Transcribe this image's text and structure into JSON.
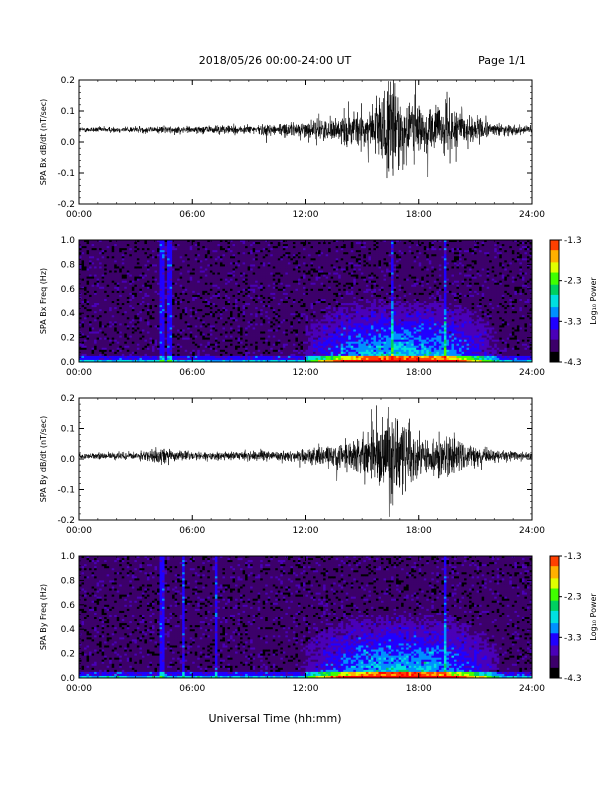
{
  "header": {
    "title": "2018/05/26  00:00-24:00 UT",
    "page": "Page 1/1"
  },
  "footer": {
    "xlabel": "Universal Time (hh:mm)"
  },
  "colorbar": {
    "label": "Log₁₀ Power",
    "ticks": [
      "-1.3",
      "-2.3",
      "-3.3",
      "-4.3"
    ],
    "range": [
      -4.3,
      -1.3
    ],
    "colors": [
      "#000000",
      "#3c006a",
      "#4a00b8",
      "#2000ff",
      "#0090ff",
      "#00e0e0",
      "#00d060",
      "#40ff00",
      "#e0ff00",
      "#ffb000",
      "#ff4000",
      "#ff0000"
    ]
  },
  "chart_data": [
    {
      "type": "line",
      "panel": "bx-timeseries",
      "ylabel": "SPA Bx dB/dt (nT/sec)",
      "x_ticks": [
        "00:00",
        "06:00",
        "12:00",
        "18:00",
        "24:00"
      ],
      "y_ticks": [
        "0.2",
        "0.1",
        "0.0",
        "-0.1",
        "-0.2"
      ],
      "xlim": [
        0,
        24
      ],
      "ylim": [
        -0.2,
        0.2
      ],
      "baseline": 0.04,
      "activity_envelope": [
        {
          "hour": 0,
          "amplitude": 0.008
        },
        {
          "hour": 3,
          "amplitude": 0.01
        },
        {
          "hour": 6,
          "amplitude": 0.012
        },
        {
          "hour": 9,
          "amplitude": 0.014
        },
        {
          "hour": 11,
          "amplitude": 0.02
        },
        {
          "hour": 13,
          "amplitude": 0.03
        },
        {
          "hour": 14.5,
          "amplitude": 0.05
        },
        {
          "hour": 15.5,
          "amplitude": 0.08
        },
        {
          "hour": 16.5,
          "amplitude": 0.15
        },
        {
          "hour": 17.5,
          "amplitude": 0.12
        },
        {
          "hour": 18.5,
          "amplitude": 0.06
        },
        {
          "hour": 19.5,
          "amplitude": 0.09
        },
        {
          "hour": 20.5,
          "amplitude": 0.05
        },
        {
          "hour": 22,
          "amplitude": 0.02
        },
        {
          "hour": 24,
          "amplitude": 0.012
        }
      ]
    },
    {
      "type": "heatmap",
      "panel": "bx-spectrogram",
      "ylabel": "SPA Bx Freq (Hz)",
      "x_ticks": [
        "00:00",
        "06:00",
        "12:00",
        "18:00",
        "24:00"
      ],
      "y_ticks": [
        "1.0",
        "0.8",
        "0.6",
        "0.4",
        "0.2",
        "0.0"
      ],
      "xlim": [
        0,
        24
      ],
      "ylim": [
        0,
        1.0
      ],
      "zlim": [
        -4.3,
        -1.3
      ],
      "background_log_power": -3.9,
      "vertical_streaks_hours": [
        4.4,
        4.8,
        16.6,
        19.4
      ],
      "enhanced_region": {
        "hours": [
          12,
          23
        ],
        "peak_hour": 17,
        "max_freq_hz": 0.45
      }
    },
    {
      "type": "line",
      "panel": "by-timeseries",
      "ylabel": "SPA By dB/dt (nT/sec)",
      "x_ticks": [
        "00:00",
        "06:00",
        "12:00",
        "18:00",
        "24:00"
      ],
      "y_ticks": [
        "0.2",
        "0.1",
        "0.0",
        "-0.1",
        "-0.2"
      ],
      "xlim": [
        0,
        24
      ],
      "ylim": [
        -0.2,
        0.2
      ],
      "baseline": 0.01,
      "activity_envelope": [
        {
          "hour": 0,
          "amplitude": 0.008
        },
        {
          "hour": 3,
          "amplitude": 0.012
        },
        {
          "hour": 4.5,
          "amplitude": 0.025
        },
        {
          "hour": 6,
          "amplitude": 0.012
        },
        {
          "hour": 9,
          "amplitude": 0.014
        },
        {
          "hour": 11,
          "amplitude": 0.018
        },
        {
          "hour": 13,
          "amplitude": 0.03
        },
        {
          "hour": 14.5,
          "amplitude": 0.05
        },
        {
          "hour": 15.5,
          "amplitude": 0.09
        },
        {
          "hour": 16.5,
          "amplitude": 0.16
        },
        {
          "hour": 17.5,
          "amplitude": 0.11
        },
        {
          "hour": 18.5,
          "amplitude": 0.05
        },
        {
          "hour": 19.5,
          "amplitude": 0.08
        },
        {
          "hour": 20.5,
          "amplitude": 0.04
        },
        {
          "hour": 22,
          "amplitude": 0.018
        },
        {
          "hour": 24,
          "amplitude": 0.012
        }
      ]
    },
    {
      "type": "heatmap",
      "panel": "by-spectrogram",
      "ylabel": "SPA By Freq (Hz)",
      "x_ticks": [
        "00:00",
        "06:00",
        "12:00",
        "18:00",
        "24:00"
      ],
      "y_ticks": [
        "1.0",
        "0.8",
        "0.6",
        "0.4",
        "0.2",
        "0.0"
      ],
      "xlim": [
        0,
        24
      ],
      "ylim": [
        0,
        1.0
      ],
      "zlim": [
        -4.3,
        -1.3
      ],
      "background_log_power": -3.9,
      "vertical_streaks_hours": [
        4.4,
        5.5,
        7.3,
        19.4
      ],
      "enhanced_region": {
        "hours": [
          12,
          23
        ],
        "peak_hour": 17,
        "max_freq_hz": 0.45
      }
    }
  ]
}
